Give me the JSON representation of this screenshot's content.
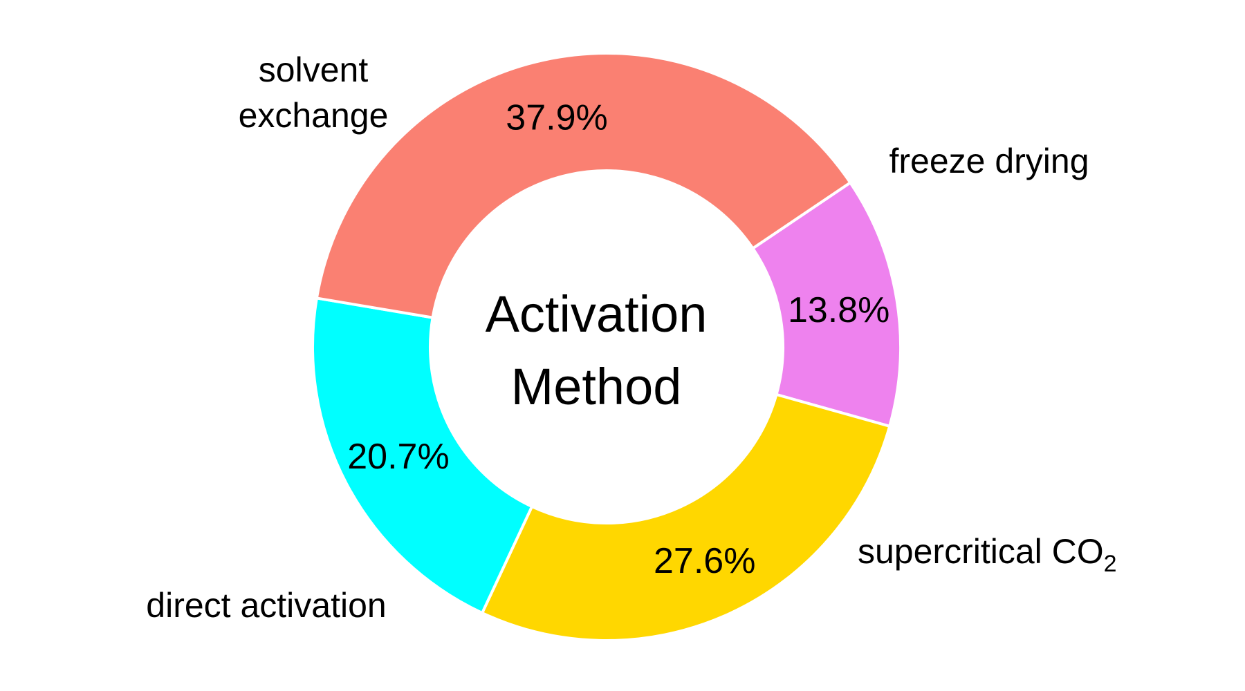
{
  "chart_data": {
    "type": "pie",
    "center_title": [
      "Activation",
      "Method"
    ],
    "slices": [
      {
        "label_lines": [
          "freeze drying"
        ],
        "value": 13.8,
        "value_label": "13.8%",
        "color": "#EE82EE"
      },
      {
        "label_lines": [
          "supercritical CO"
        ],
        "label_subscript": "2",
        "value": 27.6,
        "value_label": "27.6%",
        "color": "#FFD700"
      },
      {
        "label_lines": [
          "direct activation"
        ],
        "value": 20.7,
        "value_label": "20.7%",
        "color": "#00FFFF"
      },
      {
        "label_lines": [
          "solvent",
          "exchange"
        ],
        "value": 37.9,
        "value_label": "37.9%",
        "color": "#FA8072"
      }
    ],
    "start_angle_deg": 56,
    "direction": "clockwise"
  }
}
